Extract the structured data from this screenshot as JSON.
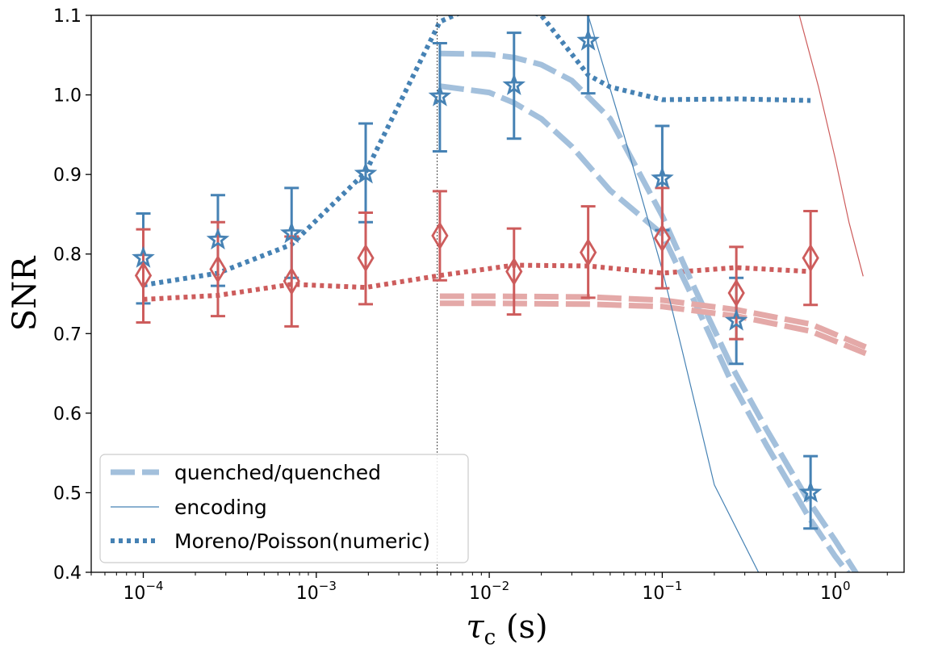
{
  "chart_data": {
    "type": "line",
    "xscale": "log",
    "xlim": [
      5e-05,
      2.5
    ],
    "ylim": [
      0.4,
      1.1
    ],
    "xlabel": {
      "tau": "τ",
      "sub": "c",
      "unit": " (s)"
    },
    "ylabel": "SNR",
    "x_ticks": [
      {
        "value": 0.0001,
        "label": "10",
        "exp": "−4"
      },
      {
        "value": 0.001,
        "label": "10",
        "exp": "−3"
      },
      {
        "value": 0.01,
        "label": "10",
        "exp": "−2"
      },
      {
        "value": 0.1,
        "label": "10",
        "exp": "−1"
      },
      {
        "value": 1,
        "label": "10",
        "exp": "0"
      }
    ],
    "y_ticks": [
      {
        "value": 0.4,
        "label": "0.4"
      },
      {
        "value": 0.5,
        "label": "0.5"
      },
      {
        "value": 0.6,
        "label": "0.6"
      },
      {
        "value": 0.7,
        "label": "0.7"
      },
      {
        "value": 0.8,
        "label": "0.8"
      },
      {
        "value": 0.9,
        "label": "0.9"
      },
      {
        "value": 1.0,
        "label": "1.0"
      },
      {
        "value": 1.1,
        "label": "1.1"
      }
    ],
    "vline": {
      "x": 0.005
    },
    "grid": false,
    "legend_position": "lower-left",
    "legend": [
      {
        "label": "quenched/quenched",
        "style": "dashed"
      },
      {
        "label": "encoding",
        "style": "solid-thin"
      },
      {
        "label": "Moreno/Poisson(numeric)",
        "style": "dotted"
      }
    ],
    "series": [
      {
        "color": "#4682b4",
        "marker": "star",
        "points": [
          {
            "x": 0.0001,
            "y": 0.795,
            "lo": 0.738,
            "hi": 0.851
          },
          {
            "x": 0.00027,
            "y": 0.818,
            "lo": 0.76,
            "hi": 0.874
          },
          {
            "x": 0.00072,
            "y": 0.826,
            "lo": 0.77,
            "hi": 0.883
          },
          {
            "x": 0.00193,
            "y": 0.901,
            "lo": 0.84,
            "hi": 0.964
          },
          {
            "x": 0.00518,
            "y": 0.998,
            "lo": 0.929,
            "hi": 1.065
          },
          {
            "x": 0.0139,
            "y": 1.012,
            "lo": 0.945,
            "hi": 1.078
          },
          {
            "x": 0.0373,
            "y": 1.068,
            "lo": 1.002,
            "hi": 1.15
          },
          {
            "x": 0.1,
            "y": 0.895,
            "lo": 0.83,
            "hi": 0.961
          },
          {
            "x": 0.268,
            "y": 0.716,
            "lo": 0.662,
            "hi": 0.77
          },
          {
            "x": 0.72,
            "y": 0.5,
            "lo": 0.455,
            "hi": 0.546
          }
        ]
      },
      {
        "color": "#cd5c5c",
        "marker": "diamond",
        "points": [
          {
            "x": 0.0001,
            "y": 0.773,
            "lo": 0.714,
            "hi": 0.831
          },
          {
            "x": 0.00027,
            "y": 0.781,
            "lo": 0.722,
            "hi": 0.84
          },
          {
            "x": 0.00072,
            "y": 0.766,
            "lo": 0.709,
            "hi": 0.822
          },
          {
            "x": 0.00193,
            "y": 0.795,
            "lo": 0.737,
            "hi": 0.852
          },
          {
            "x": 0.00518,
            "y": 0.823,
            "lo": 0.767,
            "hi": 0.879
          },
          {
            "x": 0.0139,
            "y": 0.778,
            "lo": 0.724,
            "hi": 0.832
          },
          {
            "x": 0.0373,
            "y": 0.802,
            "lo": 0.745,
            "hi": 0.86
          },
          {
            "x": 0.1,
            "y": 0.82,
            "lo": 0.757,
            "hi": 0.883
          },
          {
            "x": 0.268,
            "y": 0.751,
            "lo": 0.693,
            "hi": 0.809
          },
          {
            "x": 0.72,
            "y": 0.795,
            "lo": 0.736,
            "hi": 0.854
          }
        ]
      }
    ],
    "lines": [
      {
        "kind": "dotted",
        "color": "#4682b4",
        "x": [
          0.0001,
          0.00027,
          0.00072,
          0.00193,
          0.00518,
          0.008,
          0.0139,
          0.02,
          0.0373,
          0.05,
          0.1,
          0.268,
          0.72
        ],
        "y": [
          0.761,
          0.776,
          0.812,
          0.903,
          1.092,
          1.11,
          1.112,
          1.1,
          1.025,
          1.01,
          0.994,
          0.995,
          0.993
        ]
      },
      {
        "kind": "dotted",
        "color": "#cd5c5c",
        "x": [
          0.0001,
          0.00027,
          0.00072,
          0.00193,
          0.00518,
          0.0139,
          0.0373,
          0.1,
          0.268,
          0.72
        ],
        "y": [
          0.743,
          0.748,
          0.762,
          0.758,
          0.773,
          0.786,
          0.785,
          0.776,
          0.783,
          0.778
        ]
      },
      {
        "kind": "dashed",
        "color": "#a3c0dc",
        "x": [
          0.00518,
          0.01,
          0.0139,
          0.02,
          0.03,
          0.05,
          0.1,
          0.15,
          0.25,
          0.4,
          0.7,
          1.0,
          1.5
        ],
        "y": [
          1.052,
          1.051,
          1.047,
          1.038,
          1.018,
          0.97,
          0.848,
          0.762,
          0.66,
          0.58,
          0.49,
          0.44,
          0.38
        ]
      },
      {
        "kind": "dashed",
        "color": "#a3c0dc",
        "x": [
          0.00518,
          0.01,
          0.0139,
          0.02,
          0.03,
          0.05,
          0.1,
          0.15,
          0.25,
          0.4,
          0.7,
          1.0,
          1.5
        ],
        "y": [
          1.011,
          1.003,
          0.99,
          0.97,
          0.935,
          0.88,
          0.825,
          0.745,
          0.64,
          0.56,
          0.47,
          0.42,
          0.37
        ]
      },
      {
        "kind": "dashed",
        "color": "#e4a9a8",
        "x": [
          0.00518,
          0.01,
          0.0373,
          0.1,
          0.268,
          0.72,
          1.5
        ],
        "y": [
          0.747,
          0.747,
          0.746,
          0.742,
          0.73,
          0.712,
          0.683
        ]
      },
      {
        "kind": "dashed",
        "color": "#e4a9a8",
        "x": [
          0.00518,
          0.01,
          0.0373,
          0.1,
          0.268,
          0.72,
          1.5
        ],
        "y": [
          0.738,
          0.738,
          0.737,
          0.734,
          0.722,
          0.703,
          0.675
        ]
      },
      {
        "kind": "solid",
        "color": "#4682b4",
        "x": [
          0.0373,
          0.06,
          0.1,
          0.13,
          0.2,
          0.36
        ],
        "y": [
          1.1,
          0.95,
          0.78,
          0.68,
          0.51,
          0.4
        ]
      },
      {
        "kind": "solid",
        "color": "#cd5c5c",
        "x": [
          0.62,
          0.8,
          1.0,
          1.2,
          1.45
        ],
        "y": [
          1.1,
          1.01,
          0.92,
          0.84,
          0.772
        ]
      }
    ]
  }
}
